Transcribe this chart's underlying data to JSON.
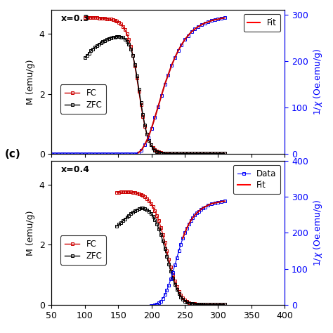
{
  "panel_top": {
    "zlabel": "x=0.3",
    "FC_x": [
      100,
      103,
      106,
      109,
      112,
      115,
      118,
      121,
      124,
      127,
      130,
      133,
      136,
      139,
      142,
      145,
      148,
      151,
      154,
      157,
      160,
      163,
      166,
      169,
      172,
      175,
      178,
      181,
      184,
      187,
      190,
      193,
      196,
      199,
      202,
      205,
      208,
      211,
      214,
      217,
      220,
      225,
      230,
      235,
      240,
      245,
      250,
      255,
      260,
      265,
      270,
      275,
      280,
      285,
      290,
      295,
      300,
      305,
      310
    ],
    "FC_y": [
      4.55,
      4.55,
      4.55,
      4.55,
      4.54,
      4.54,
      4.54,
      4.53,
      4.53,
      4.52,
      4.52,
      4.51,
      4.5,
      4.49,
      4.47,
      4.45,
      4.42,
      4.38,
      4.33,
      4.25,
      4.14,
      4.0,
      3.82,
      3.58,
      3.28,
      2.92,
      2.52,
      2.08,
      1.65,
      1.25,
      0.92,
      0.65,
      0.45,
      0.3,
      0.2,
      0.13,
      0.09,
      0.06,
      0.04,
      0.03,
      0.02,
      0.02,
      0.01,
      0.01,
      0.01,
      0.01,
      0.01,
      0.01,
      0.01,
      0.01,
      0.01,
      0.01,
      0.01,
      0.01,
      0.01,
      0.01,
      0.01,
      0.01,
      0.01
    ],
    "ZFC_x": [
      100,
      103,
      106,
      109,
      112,
      115,
      118,
      121,
      124,
      127,
      130,
      133,
      136,
      139,
      142,
      145,
      148,
      151,
      154,
      157,
      160,
      163,
      166,
      169,
      172,
      175,
      178,
      181,
      184,
      187,
      190,
      193,
      196,
      199,
      202,
      205,
      208,
      211,
      214,
      217,
      220,
      225,
      230,
      235,
      240,
      245,
      250,
      255,
      260,
      265,
      270,
      275,
      280,
      285,
      290,
      295,
      300,
      305,
      310
    ],
    "ZFC_y": [
      3.2,
      3.28,
      3.36,
      3.44,
      3.5,
      3.56,
      3.61,
      3.66,
      3.71,
      3.75,
      3.78,
      3.82,
      3.85,
      3.87,
      3.89,
      3.9,
      3.91,
      3.91,
      3.9,
      3.88,
      3.83,
      3.76,
      3.65,
      3.5,
      3.28,
      2.98,
      2.6,
      2.16,
      1.72,
      1.3,
      0.95,
      0.66,
      0.45,
      0.29,
      0.18,
      0.11,
      0.07,
      0.05,
      0.03,
      0.02,
      0.01,
      0.01,
      0.01,
      0.01,
      0.01,
      0.01,
      0.01,
      0.01,
      0.01,
      0.01,
      0.01,
      0.01,
      0.01,
      0.01,
      0.01,
      0.01,
      0.01,
      0.01,
      0.01
    ],
    "inv_chi_x": [
      50,
      55,
      60,
      65,
      70,
      75,
      80,
      85,
      90,
      95,
      100,
      105,
      110,
      115,
      120,
      125,
      130,
      135,
      140,
      145,
      150,
      155,
      160,
      165,
      170,
      175,
      180,
      185,
      190,
      195,
      200,
      205,
      210,
      215,
      220,
      225,
      230,
      235,
      240,
      245,
      250,
      255,
      260,
      265,
      270,
      275,
      280,
      285,
      290,
      295,
      300,
      305,
      310
    ],
    "inv_chi_y": [
      0,
      0,
      0,
      0,
      0,
      0,
      0,
      0,
      0,
      0,
      0,
      0,
      0,
      0,
      0,
      0,
      0,
      0,
      0,
      0,
      0,
      0,
      0,
      0,
      0,
      0,
      2,
      8,
      20,
      35,
      55,
      78,
      102,
      126,
      150,
      170,
      190,
      207,
      222,
      235,
      246,
      255,
      263,
      269,
      274,
      278,
      282,
      284,
      287,
      289,
      290,
      292,
      293
    ],
    "fit_x": [
      180,
      185,
      190,
      195,
      200,
      205,
      210,
      215,
      220,
      225,
      230,
      235,
      240,
      245,
      250,
      255,
      260,
      265,
      270,
      275,
      280,
      285,
      290,
      295,
      300,
      305,
      310
    ],
    "fit_y": [
      2,
      8,
      20,
      35,
      55,
      78,
      102,
      126,
      150,
      170,
      190,
      207,
      222,
      235,
      246,
      255,
      263,
      269,
      274,
      278,
      282,
      284,
      287,
      289,
      290,
      292,
      293
    ],
    "ylim_M": [
      0,
      4.8
    ],
    "ylim_inv": [
      0,
      310
    ],
    "xlim": [
      50,
      400
    ],
    "yticks_M": [
      0,
      2,
      4
    ],
    "yticks_inv": [
      0,
      100,
      200,
      300
    ]
  },
  "panel_bottom": {
    "label": "(c)",
    "zlabel": "x=0.4",
    "FC_x": [
      148,
      151,
      154,
      157,
      160,
      163,
      166,
      169,
      172,
      175,
      178,
      181,
      184,
      187,
      190,
      193,
      196,
      199,
      202,
      205,
      208,
      211,
      214,
      217,
      220,
      223,
      226,
      229,
      232,
      235,
      238,
      241,
      244,
      247,
      250,
      253,
      256,
      259,
      262,
      265,
      268,
      271,
      274,
      277,
      280,
      285,
      290,
      295,
      300,
      305,
      310
    ],
    "FC_y": [
      3.74,
      3.75,
      3.76,
      3.77,
      3.77,
      3.77,
      3.77,
      3.76,
      3.75,
      3.74,
      3.72,
      3.7,
      3.68,
      3.65,
      3.6,
      3.54,
      3.47,
      3.38,
      3.27,
      3.14,
      2.98,
      2.8,
      2.58,
      2.34,
      2.08,
      1.8,
      1.52,
      1.25,
      1.0,
      0.78,
      0.6,
      0.44,
      0.32,
      0.22,
      0.15,
      0.1,
      0.07,
      0.05,
      0.04,
      0.03,
      0.02,
      0.02,
      0.02,
      0.01,
      0.01,
      0.01,
      0.01,
      0.01,
      0.01,
      0.01,
      0.01
    ],
    "ZFC_x": [
      148,
      151,
      154,
      157,
      160,
      163,
      166,
      169,
      172,
      175,
      178,
      181,
      184,
      187,
      190,
      193,
      196,
      199,
      202,
      205,
      208,
      211,
      214,
      217,
      220,
      223,
      226,
      229,
      232,
      235,
      238,
      241,
      244,
      247,
      250,
      253,
      256,
      259,
      262,
      265,
      268,
      271,
      274,
      277,
      280,
      285,
      290,
      295,
      300,
      305,
      310
    ],
    "ZFC_y": [
      2.62,
      2.68,
      2.74,
      2.8,
      2.86,
      2.92,
      2.98,
      3.04,
      3.09,
      3.14,
      3.17,
      3.2,
      3.22,
      3.22,
      3.2,
      3.17,
      3.12,
      3.05,
      2.96,
      2.84,
      2.7,
      2.53,
      2.34,
      2.12,
      1.88,
      1.62,
      1.36,
      1.11,
      0.88,
      0.68,
      0.51,
      0.37,
      0.26,
      0.18,
      0.12,
      0.08,
      0.05,
      0.04,
      0.03,
      0.02,
      0.01,
      0.01,
      0.01,
      0.01,
      0.01,
      0.01,
      0.01,
      0.01,
      0.01,
      0.01,
      0.01
    ],
    "inv_chi_x": [
      50,
      55,
      60,
      65,
      70,
      75,
      80,
      85,
      90,
      95,
      100,
      110,
      120,
      130,
      140,
      148,
      151,
      154,
      157,
      160,
      163,
      166,
      169,
      172,
      175,
      178,
      181,
      184,
      187,
      190,
      193,
      196,
      199,
      202,
      205,
      208,
      211,
      214,
      217,
      220,
      223,
      226,
      229,
      232,
      235,
      238,
      241,
      244,
      247,
      250,
      253,
      256,
      259,
      262,
      265,
      268,
      271,
      274,
      277,
      280,
      285,
      290,
      295,
      300,
      305,
      310
    ],
    "inv_chi_y": [
      -5,
      -5,
      -5,
      -5,
      -5,
      -5,
      -5,
      -5,
      -5,
      -5,
      -5,
      -5,
      -5,
      -5,
      -5,
      -5,
      -5,
      -5,
      -5,
      -5,
      -5,
      -5,
      -5,
      -5,
      -5,
      -5,
      -5,
      -5,
      -5,
      -5,
      -5,
      -5,
      -3,
      -2,
      0,
      2,
      5,
      10,
      18,
      28,
      40,
      55,
      72,
      90,
      110,
      130,
      150,
      168,
      185,
      200,
      213,
      224,
      234,
      242,
      249,
      255,
      260,
      265,
      269,
      272,
      277,
      281,
      283,
      285,
      287,
      288
    ],
    "fit_x": [
      247,
      250,
      253,
      256,
      259,
      262,
      265,
      268,
      271,
      274,
      277,
      280,
      285,
      290,
      295,
      300,
      305,
      310
    ],
    "fit_y": [
      185,
      200,
      213,
      224,
      234,
      242,
      249,
      255,
      260,
      265,
      269,
      272,
      277,
      281,
      283,
      285,
      287,
      288
    ],
    "ylim_M": [
      0,
      4.8
    ],
    "ylim_inv": [
      0,
      400
    ],
    "xlim": [
      50,
      400
    ],
    "yticks_M": [
      0,
      2,
      4
    ],
    "yticks_inv": [
      0,
      100,
      200,
      300,
      400
    ]
  },
  "colors": {
    "FC": "#cc0000",
    "ZFC": "#000000",
    "inv_chi_data": "#0000ee",
    "inv_chi_fit": "#cc0000"
  },
  "marker_size": 3.5,
  "marker_size_inv": 2.5,
  "linewidth_MH": 1.0,
  "linewidth_inv": 0.8,
  "linewidth_fit": 1.5
}
